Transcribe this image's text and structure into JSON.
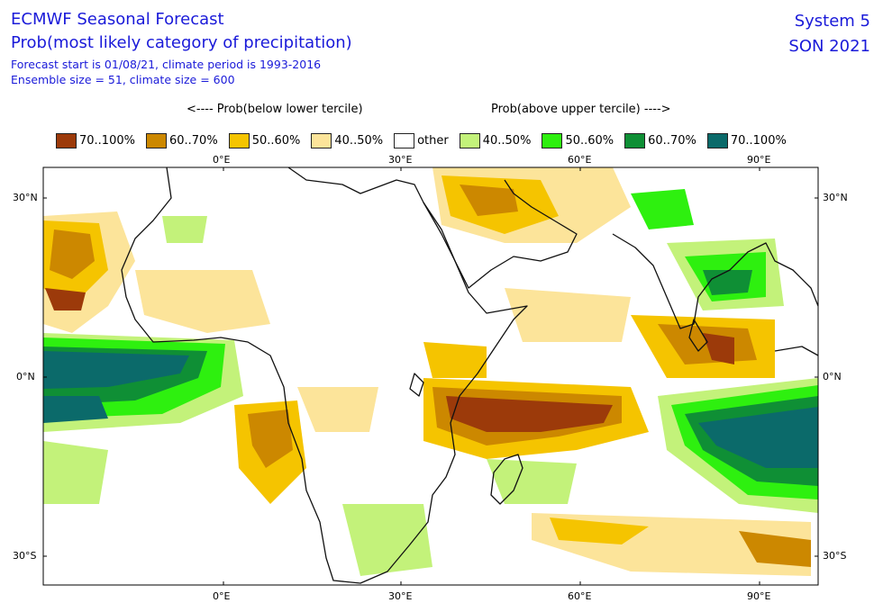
{
  "header": {
    "title": "ECMWF Seasonal Forecast",
    "subtitle": "Prob(most likely category of precipitation)",
    "forecast_info": "Forecast start is 01/08/21, climate period is 1993-2016",
    "ensemble_info": "Ensemble size = 51, climate size = 600",
    "system": "System 5",
    "season": "SON 2021"
  },
  "legend": {
    "below_label": "<---- Prob(below lower tercile)",
    "above_label": "Prob(above upper tercile) ---->",
    "items": [
      {
        "label": "70..100%",
        "color": "#9c3a0a"
      },
      {
        "label": "60..70%",
        "color": "#cc8800"
      },
      {
        "label": "50..60%",
        "color": "#f5c400"
      },
      {
        "label": "40..50%",
        "color": "#fce49a"
      },
      {
        "label": "other",
        "color": "#ffffff"
      },
      {
        "label": "40..50%",
        "color": "#c3f27a"
      },
      {
        "label": "50..60%",
        "color": "#2ef00f"
      },
      {
        "label": "60..70%",
        "color": "#0f8f35"
      },
      {
        "label": "70..100%",
        "color": "#0b6a6a"
      }
    ]
  },
  "axes": {
    "lon_ticks": [
      "0°E",
      "30°E",
      "60°E",
      "90°E"
    ],
    "lat_ticks": [
      "30°N",
      "0°N",
      "30°S"
    ]
  }
}
